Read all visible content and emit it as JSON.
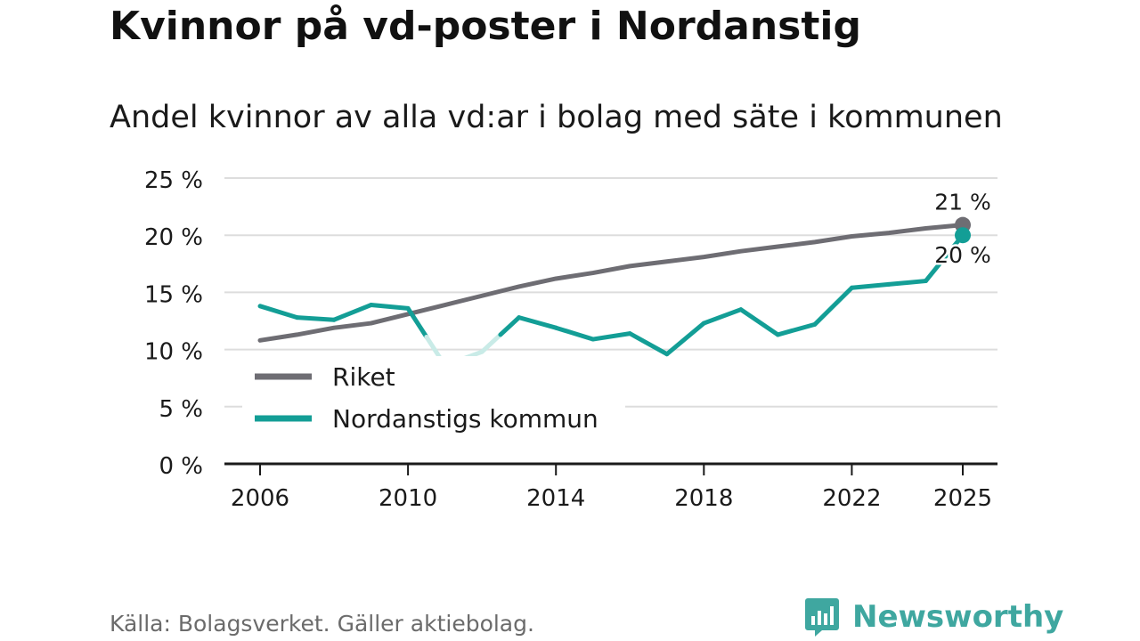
{
  "title": "Kvinnor på vd-poster i Nordanstig",
  "subtitle": "Andel kvinnor av alla vd:ar i bolag med säte i kommunen",
  "source": "Källa: Bolagsverket. Gäller aktiebolag.",
  "brand": {
    "name": "Newsworthy",
    "color": "#3fa7a0",
    "icon": "bar-chart-speech-bubble-icon"
  },
  "colors": {
    "riket": "#6e6d73",
    "nordanstig": "#139e96",
    "nordanstig_faded": "#c9ebe7",
    "grid": "#dddddd",
    "axis": "#1a1a1a",
    "text": "#1a1a1a"
  },
  "chart_data": {
    "type": "line",
    "title": "Kvinnor på vd-poster i Nordanstig",
    "subtitle": "Andel kvinnor av alla vd:ar i bolag med säte i kommunen",
    "xlabel": "",
    "ylabel": "",
    "x": [
      2006,
      2007,
      2008,
      2009,
      2010,
      2011,
      2012,
      2013,
      2014,
      2015,
      2016,
      2017,
      2018,
      2019,
      2020,
      2021,
      2022,
      2023,
      2024,
      2025
    ],
    "xlim": [
      2006,
      2025
    ],
    "ylim": [
      0,
      25
    ],
    "x_ticks": [
      2006,
      2010,
      2014,
      2018,
      2022,
      2025
    ],
    "x_tick_labels": [
      "2006",
      "2010",
      "2014",
      "2018",
      "2022",
      "2025"
    ],
    "y_ticks": [
      0,
      5,
      10,
      15,
      20,
      25
    ],
    "y_tick_labels": [
      "0 %",
      "5 %",
      "10 %",
      "15 %",
      "20 %",
      "25 %"
    ],
    "grid": true,
    "legend_position": "bottom-left",
    "series": [
      {
        "name": "Riket",
        "color": "#6e6d73",
        "values": [
          10.8,
          11.3,
          11.9,
          12.3,
          13.1,
          13.9,
          14.7,
          15.5,
          16.2,
          16.7,
          17.3,
          17.7,
          18.1,
          18.6,
          19.0,
          19.4,
          19.9,
          20.2,
          20.6,
          20.9
        ],
        "end_label": "21 %"
      },
      {
        "name": "Nordanstigs kommun",
        "color": "#139e96",
        "values": [
          13.8,
          12.8,
          12.6,
          13.9,
          13.6,
          8.6,
          9.8,
          12.8,
          11.9,
          10.9,
          11.4,
          9.6,
          12.3,
          13.5,
          11.3,
          12.2,
          15.4,
          15.7,
          16.0,
          20.0
        ],
        "faded_points": [
          2011,
          2012
        ],
        "end_label": "20 %"
      }
    ]
  }
}
